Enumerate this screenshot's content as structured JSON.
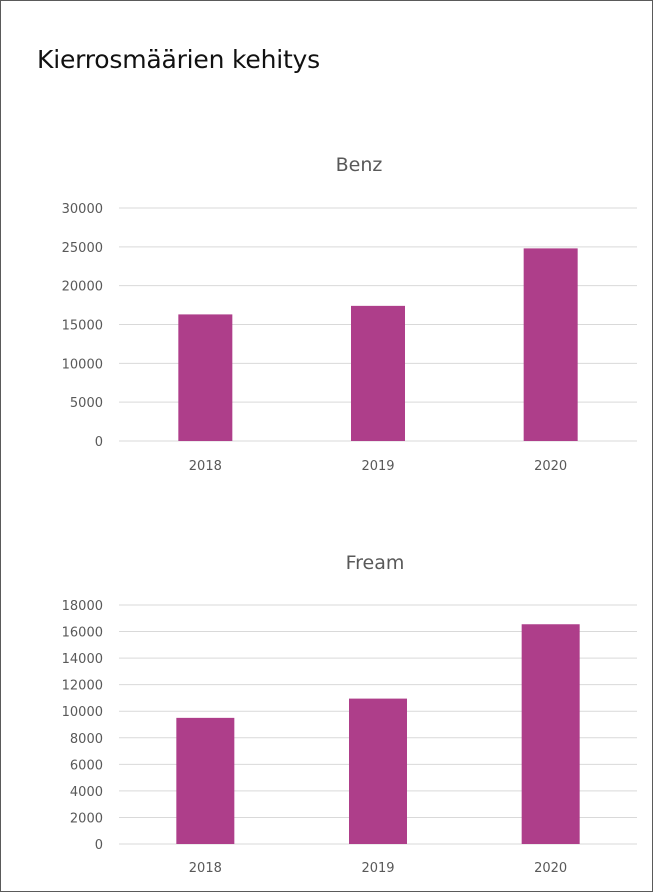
{
  "page": {
    "title": "Kierrosmäärien kehitys"
  },
  "colors": {
    "bar": "#ae3e8a",
    "grid": "#d9d9d9",
    "text": "#595959"
  },
  "chart_data": [
    {
      "type": "bar",
      "title": "Benz",
      "categories": [
        "2018",
        "2019",
        "2020"
      ],
      "values": [
        16300,
        17400,
        24800
      ],
      "ylim": [
        0,
        30000
      ],
      "yticks": [
        "0",
        "5000",
        "10000",
        "15000",
        "20000",
        "25000",
        "30000"
      ],
      "grid": true,
      "legend": "none"
    },
    {
      "type": "bar",
      "title": "Fream",
      "categories": [
        "2018",
        "2019",
        "2020"
      ],
      "values": [
        9500,
        10950,
        16550
      ],
      "ylim": [
        0,
        18000
      ],
      "yticks": [
        "0",
        "2000",
        "4000",
        "6000",
        "8000",
        "10000",
        "12000",
        "14000",
        "16000",
        "18000"
      ],
      "grid": true,
      "legend": "none"
    }
  ]
}
